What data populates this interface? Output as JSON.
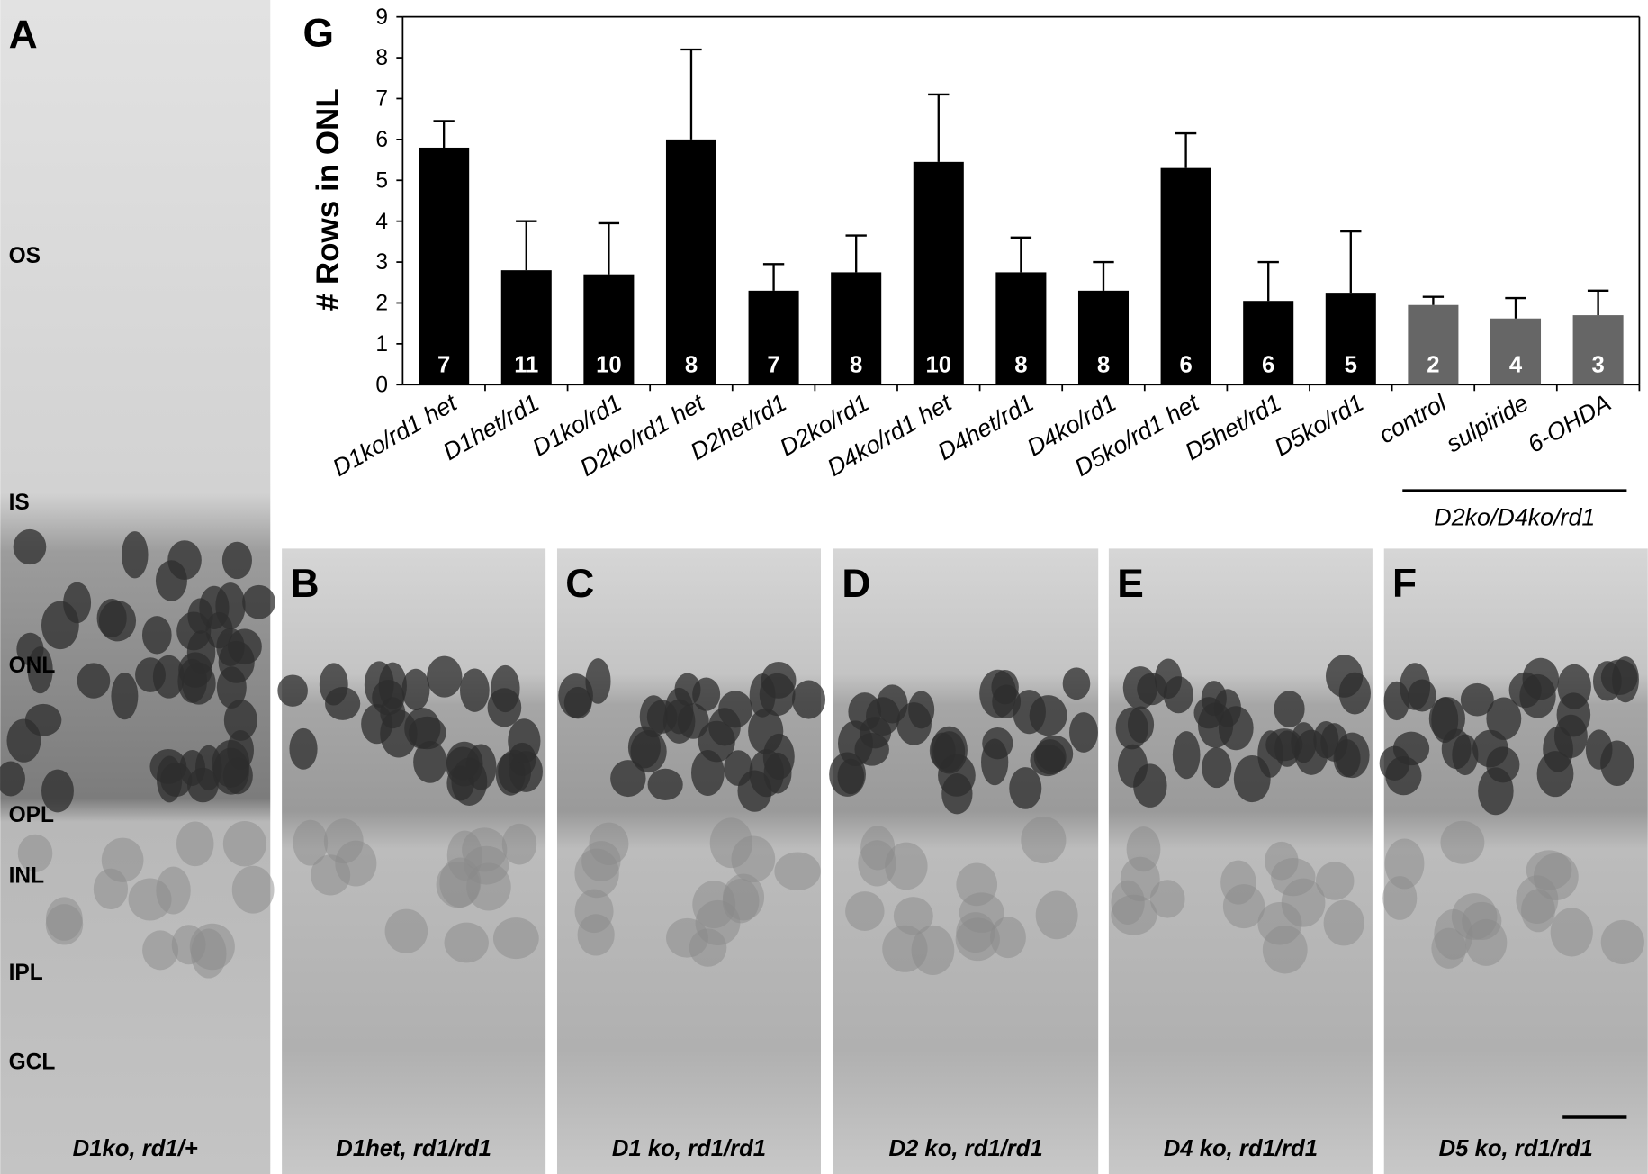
{
  "chart_data": {
    "type": "bar",
    "panel_label": "G",
    "ylabel": "# Rows in ONL",
    "categories": [
      "D1ko/rd1 het",
      "D1het/rd1",
      "D1ko/rd1",
      "D2ko/rd1 het",
      "D2het/rd1",
      "D2ko/rd1",
      "D4ko/rd1 het",
      "D4het/rd1",
      "D4ko/rd1",
      "D5ko/rd1 het",
      "D5het/rd1",
      "D5ko/rd1",
      "control",
      "sulpiride",
      "6-OHDA"
    ],
    "values": [
      5.8,
      2.8,
      2.7,
      6.0,
      2.3,
      2.75,
      5.45,
      2.75,
      2.3,
      5.3,
      2.05,
      2.25,
      1.95,
      1.62,
      1.7
    ],
    "errors": [
      0.65,
      1.2,
      1.25,
      2.2,
      0.65,
      0.9,
      1.65,
      0.85,
      0.7,
      0.85,
      0.95,
      1.5,
      0.2,
      0.5,
      0.6
    ],
    "n_labels": [
      7,
      11,
      10,
      8,
      7,
      8,
      10,
      8,
      8,
      6,
      6,
      5,
      2,
      4,
      3
    ],
    "colors": [
      "#000000",
      "#000000",
      "#000000",
      "#000000",
      "#000000",
      "#000000",
      "#000000",
      "#000000",
      "#000000",
      "#000000",
      "#000000",
      "#000000",
      "#666666",
      "#666666",
      "#666666"
    ],
    "group_label": "D2ko/D4ko/rd1",
    "ylim": [
      0,
      9
    ],
    "yticks": [
      0,
      1,
      2,
      3,
      4,
      5,
      6,
      7,
      8,
      9
    ]
  },
  "panels": [
    {
      "label": "A",
      "caption": "D1ko, rd1/+",
      "layers": [
        "OS",
        "IS",
        "ONL",
        "OPL",
        "INL",
        "IPL",
        "GCL"
      ]
    },
    {
      "label": "B",
      "caption": "D1het, rd1/rd1"
    },
    {
      "label": "C",
      "caption": "D1 ko, rd1/rd1"
    },
    {
      "label": "D",
      "caption": "D2 ko, rd1/rd1"
    },
    {
      "label": "E",
      "caption": "D4 ko, rd1/rd1"
    },
    {
      "label": "F",
      "caption": "D5 ko, rd1/rd1"
    }
  ]
}
